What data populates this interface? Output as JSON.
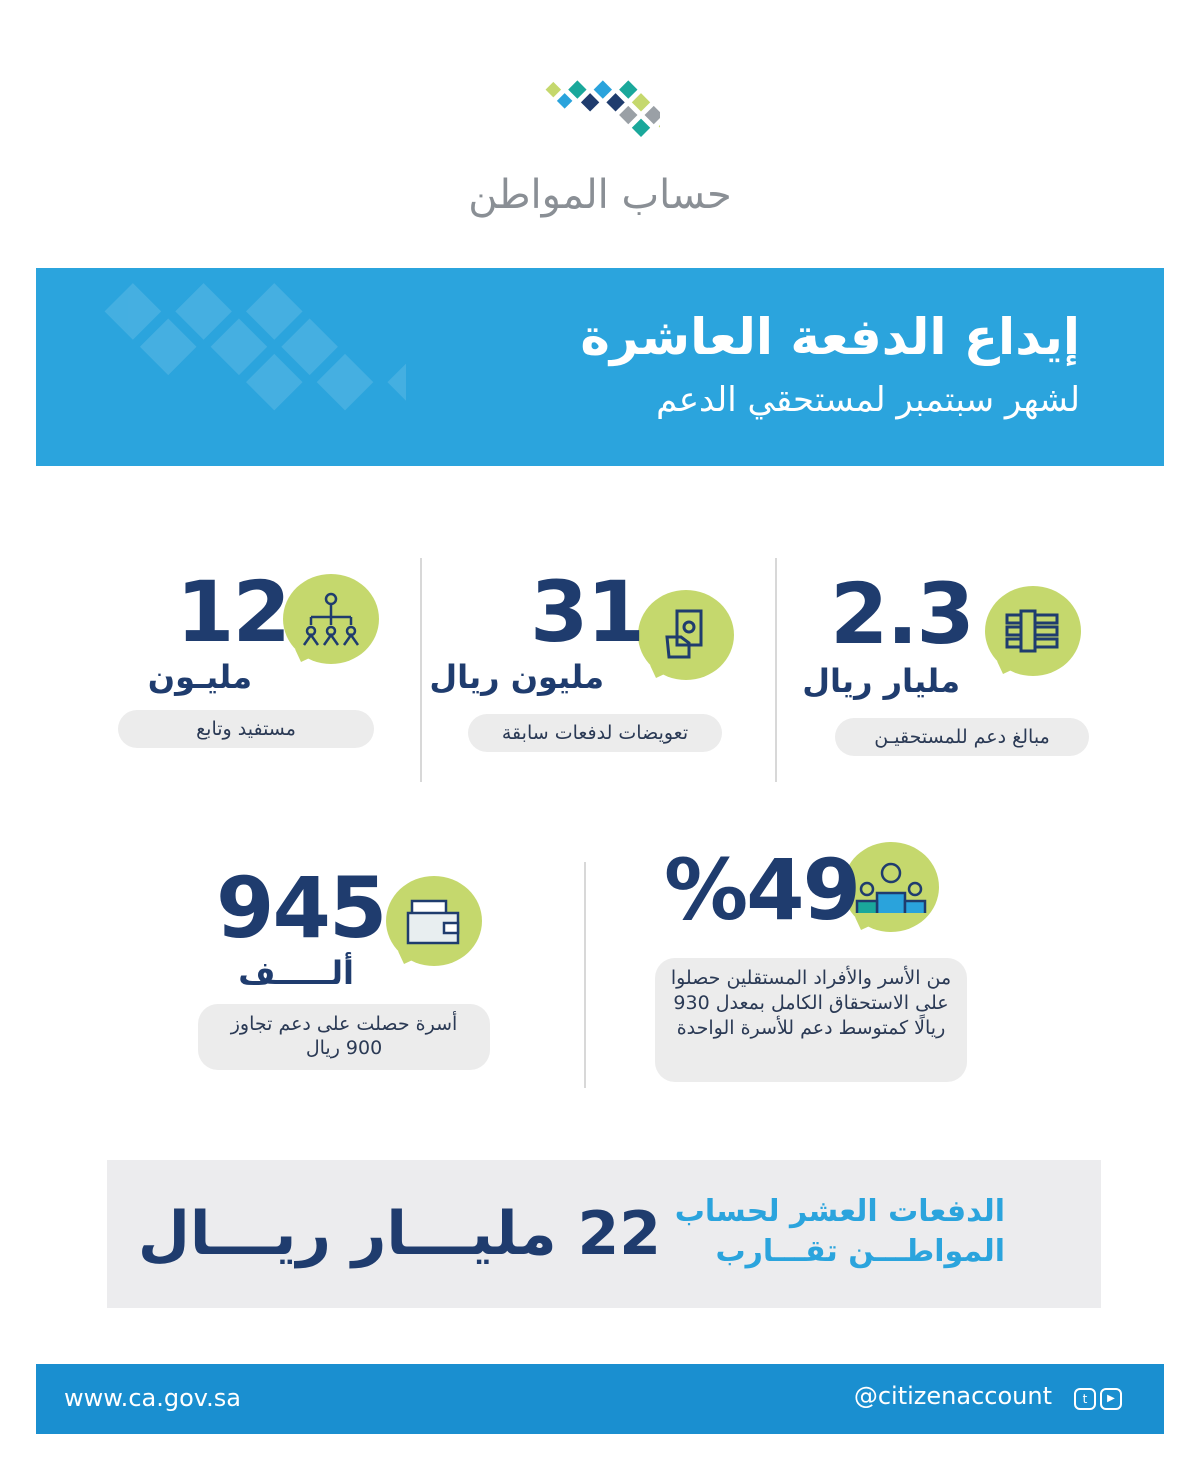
{
  "logo": {
    "text": "حساب المواطن",
    "colors": [
      "#2aa3dc",
      "#c5d86d",
      "#1f3c6e",
      "#9aa0a6",
      "#1aa89b"
    ]
  },
  "banner": {
    "title": "إيداع الدفعة العاشرة",
    "subtitle": "لشهر سبتمبر لمستحقي الدعم",
    "color": "#2ba4dd"
  },
  "stats": [
    {
      "icon": "money-stack-icon",
      "value": "2.3",
      "unit": "مليار ريال",
      "label": "مبالغ دعم للمستحقيـن"
    },
    {
      "icon": "hand-cash-icon",
      "value": "31",
      "unit": "مليون ريال",
      "label": "تعويضات لدفعات سابقة"
    },
    {
      "icon": "hierarchy-people-icon",
      "value": "12",
      "unit": "مليـون",
      "label": "مستفيد وتابع"
    },
    {
      "icon": "family-icon",
      "value": "%49",
      "unit": "",
      "label": "من الأسر والأفراد المستقلين حصلوا على الاستحقاق الكامل بمعدل 930 ريالًا كمتوسط دعم للأسرة الواحدة"
    },
    {
      "icon": "wallet-icon",
      "value": "945",
      "unit": "ألـــــف",
      "label": "أسرة حصلت على دعم تجاوز 900 ريال"
    }
  ],
  "total": {
    "caption_line1": "الدفعات العشر لحساب",
    "caption_line2": "المواطـــن تقـــارب",
    "amount": "22 مليـــار ريـــال"
  },
  "footer": {
    "website": "www.ca.gov.sa",
    "handle": "@citizenaccount",
    "social_icons": [
      "twitter-icon",
      "youtube-icon"
    ]
  },
  "colors": {
    "navy": "#1f3c6e",
    "lime": "#c5d86d",
    "footer": "#1a8fd0"
  }
}
